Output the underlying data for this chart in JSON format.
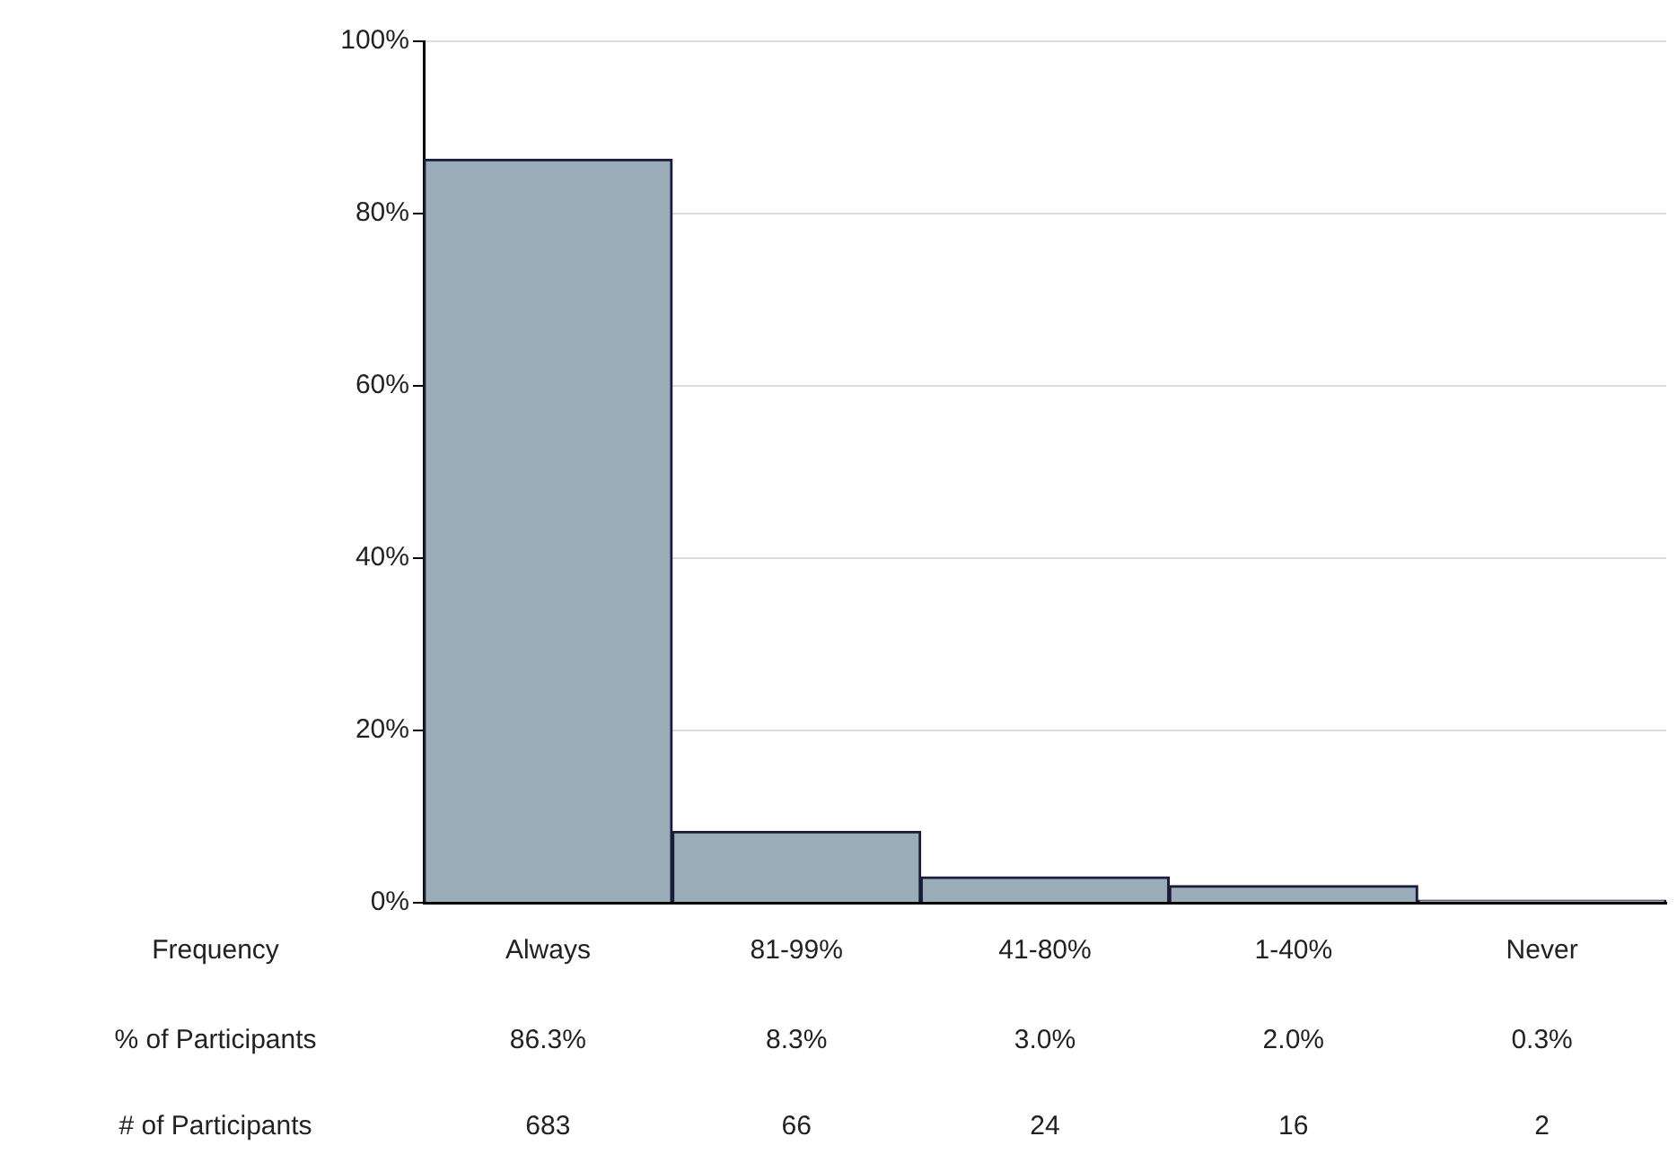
{
  "chart_data": {
    "type": "bar",
    "xlabel": "Frequency",
    "categories": [
      "Always",
      "81-99%",
      "41-80%",
      "1-40%",
      "Never"
    ],
    "values": [
      86.3,
      8.3,
      3.0,
      2.0,
      0.3
    ],
    "value_labels": [
      "86.3%",
      "8.3%",
      "3.0%",
      "2.0%",
      "0.3%"
    ],
    "color": "#9aacb8",
    "ylim": [
      0,
      100
    ],
    "yticks": [
      {
        "value": 0,
        "label": "0%"
      },
      {
        "value": 20,
        "label": "20%"
      },
      {
        "value": 40,
        "label": "40%"
      },
      {
        "value": 60,
        "label": "60%"
      },
      {
        "value": 80,
        "label": "80%"
      },
      {
        "value": 100,
        "label": "100%"
      }
    ],
    "grid": "y",
    "legend": false,
    "annotations": [
      "% of Participants",
      "# of Participants",
      "683",
      "66",
      "24",
      "16",
      "2"
    ]
  }
}
